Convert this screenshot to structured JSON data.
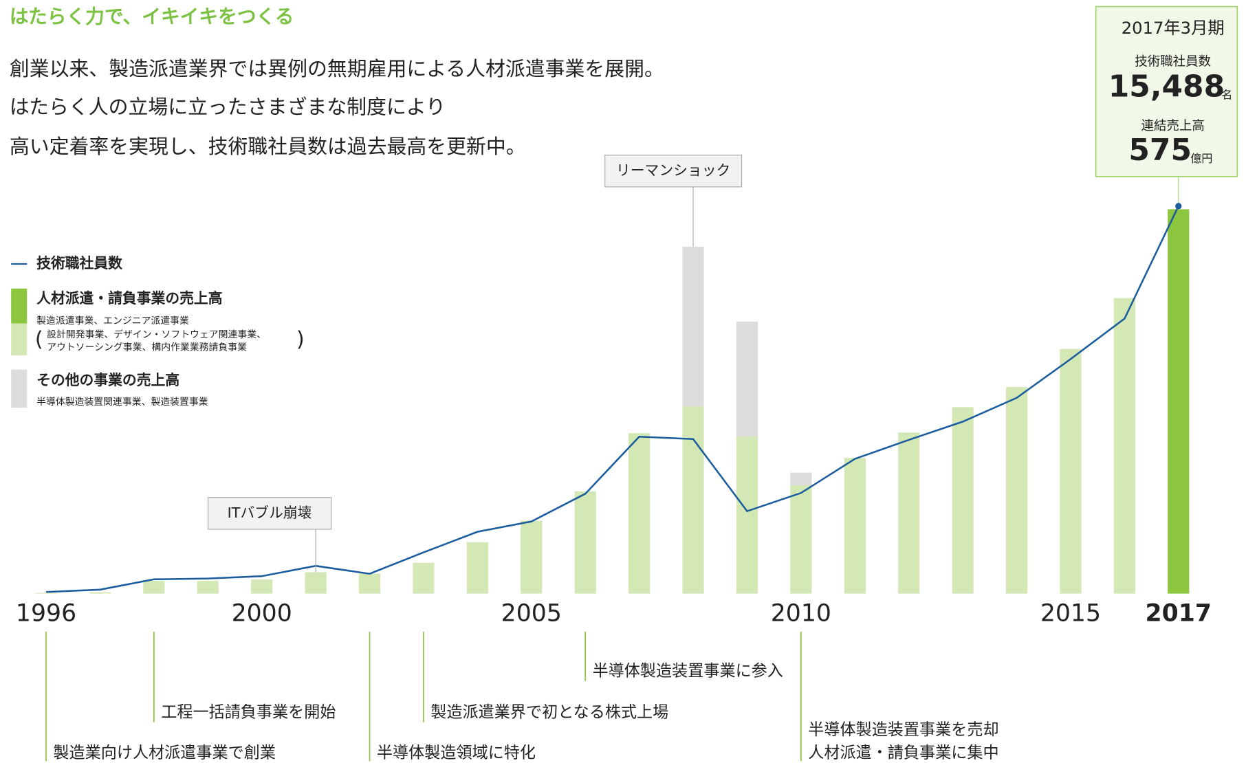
{
  "title": "はたらく力で、イキイキをつくる",
  "body": [
    "創業以来、製造派遣業界では異例の無期雇用による人材派遣事業を展開。",
    "はたらく人の立場に立ったさまざまな制度により",
    "高い定着率を実現し、技術職社員数は過去最高を更新中。"
  ],
  "highlight": {
    "period": "2017年3月期",
    "items": [
      {
        "label": "技術職社員数",
        "value": "15,488",
        "unit": "名"
      },
      {
        "label": "連結売上高",
        "value": "575",
        "unit": "億円"
      }
    ]
  },
  "chart_data": {
    "type": "bar",
    "x": [
      1996,
      1997,
      1998,
      1999,
      2000,
      2001,
      2002,
      2003,
      2004,
      2005,
      2006,
      2007,
      2008,
      2009,
      2010,
      2011,
      2012,
      2013,
      2014,
      2015,
      2016,
      2017
    ],
    "xlim": [
      1996,
      2017
    ],
    "xticks": [
      1996,
      2000,
      2005,
      2010,
      2015,
      2017
    ],
    "ylim": [
      0,
      700
    ],
    "y2lim": [
      0,
      18700
    ],
    "series": [
      {
        "name": "人材派遣・請負事業の売上高",
        "description": [
          "製造派遣事業、エンジニア派遣事業",
          "設計開発事業、デザイン・ソフトウェア関連事業、",
          "アウトソーシング事業、構内作業業務請負事業"
        ],
        "color": "#d3e8b5",
        "colors": [
          "#d3e8b5",
          "#d3e8b5",
          "#d3e8b5",
          "#d3e8b5",
          "#d3e8b5",
          "#d3e8b5",
          "#d3e8b5",
          "#d3e8b5",
          "#d3e8b5",
          "#d3e8b5",
          "#d3e8b5",
          "#d3e8b5",
          "#d3e8b5",
          "#d3e8b5",
          "#d3e8b5",
          "#d3e8b5",
          "#d3e8b5",
          "#d3e8b5",
          "#d3e8b5",
          "#d3e8b5",
          "#d3e8b5",
          "#8cc63f"
        ],
        "highlight_color": "#8cc63f",
        "values": [
          1,
          2,
          19,
          19,
          21,
          32,
          30,
          46,
          77,
          109,
          153,
          240,
          280,
          235,
          162,
          203,
          241,
          279,
          309,
          366,
          442,
          575
        ]
      },
      {
        "name": "その他の事業の売上高",
        "description": [
          "半導体製造装置関連事業、製造装置事業"
        ],
        "color": "#dcdcdc",
        "values": [
          0,
          0,
          0,
          0,
          0,
          0,
          0,
          0,
          0,
          0,
          0,
          0,
          239,
          172,
          19,
          0,
          0,
          0,
          0,
          0,
          0,
          0
        ]
      },
      {
        "name": "技術職社員数",
        "type": "line",
        "axis": "y2",
        "color": "#1a5c9e",
        "values": [
          63,
          158,
          570,
          602,
          697,
          1108,
          792,
          1647,
          2470,
          2882,
          3990,
          6271,
          6176,
          3294,
          4022,
          5384,
          6144,
          6872,
          7823,
          9374,
          10990,
          15488
        ]
      }
    ],
    "callouts": [
      {
        "x": 2001,
        "text": "ITバブル崩壊"
      },
      {
        "x": 2008,
        "text": "リーマンショック"
      }
    ],
    "events": [
      {
        "x": 1996,
        "lines": [
          "製造業向け人材派遣事業で創業"
        ]
      },
      {
        "x": 1998,
        "lines": [
          "工程一括請負事業を開始"
        ]
      },
      {
        "x": 2002,
        "lines": [
          "半導体製造領域に特化"
        ]
      },
      {
        "x": 2003,
        "lines": [
          "製造派遣業界で初となる株式上場"
        ]
      },
      {
        "x": 2006,
        "lines": [
          "半導体製造装置事業に参入"
        ]
      },
      {
        "x": 2010,
        "lines": [
          "半導体製造装置事業を売却",
          "人材派遣・請負事業に集中"
        ]
      }
    ]
  }
}
